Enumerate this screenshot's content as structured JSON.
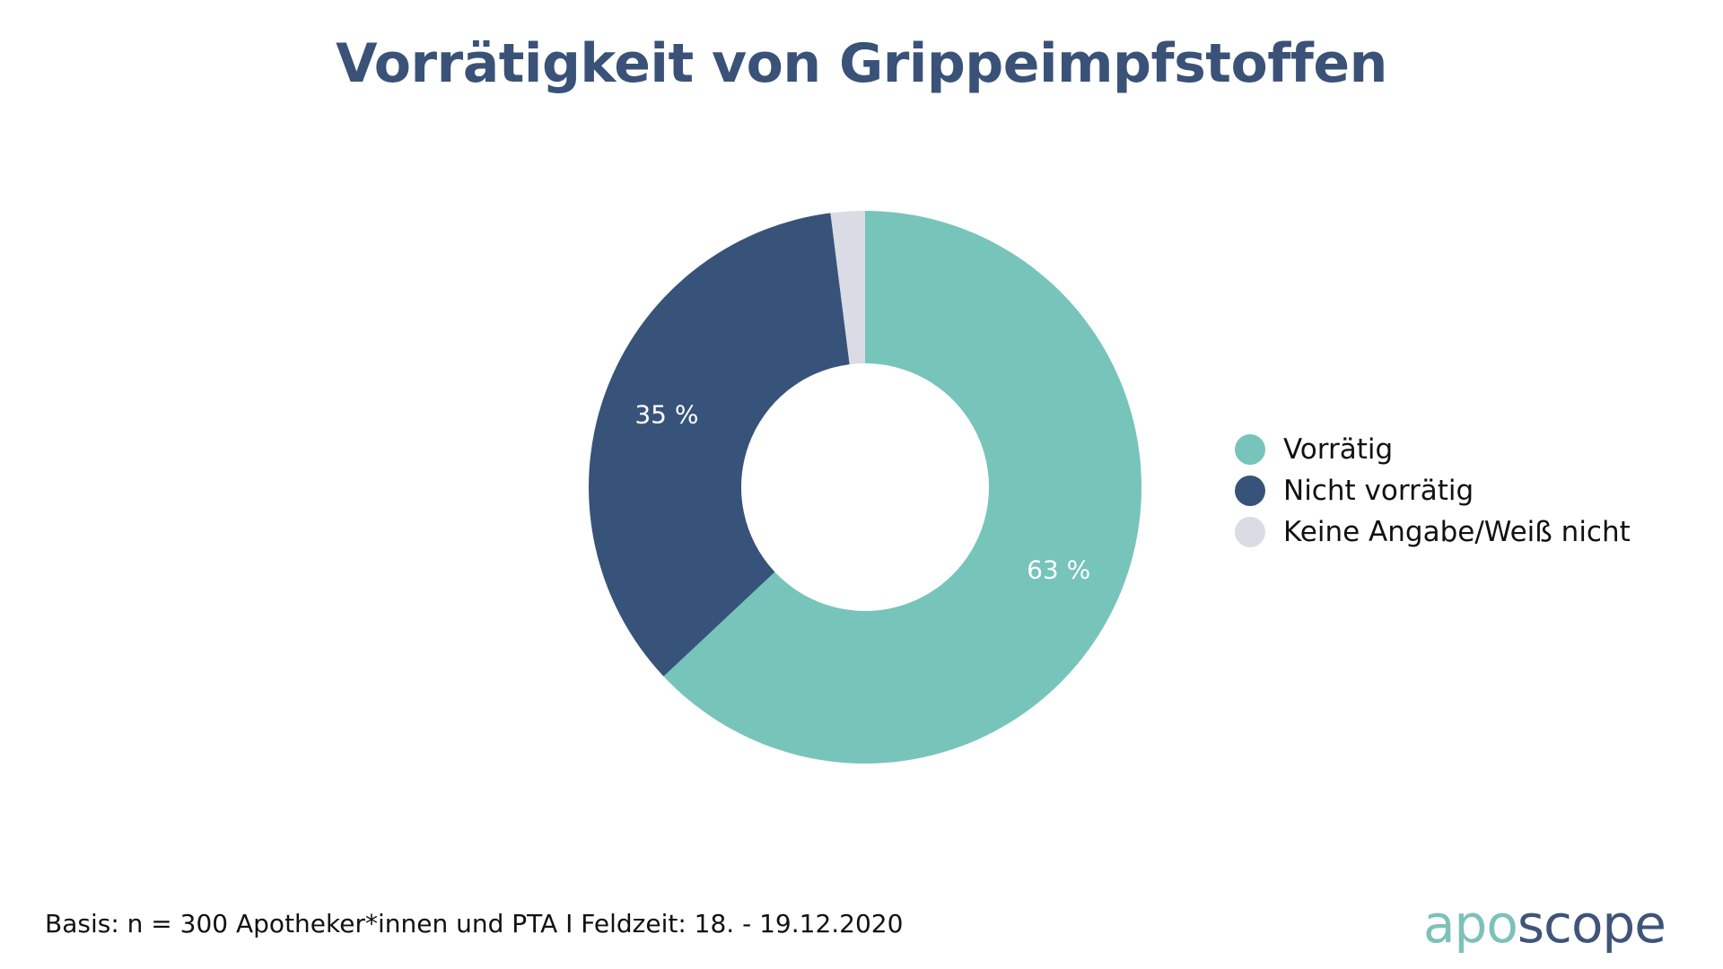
{
  "chart_data": {
    "type": "pie",
    "variant": "donut",
    "title": "Vorrätigkeit von Grippeimpfstoffen",
    "categories": [
      "Vorrätig",
      "Nicht vorrätig",
      "Keine Angabe/Weiß nicht"
    ],
    "values": [
      63,
      35,
      2
    ],
    "data_labels": [
      "63 %",
      "35 %",
      ""
    ],
    "colors": [
      "#77c4bb",
      "#38537a",
      "#d9dce4"
    ],
    "unit": "%",
    "legend_placement": "right"
  },
  "footer": {
    "note": "Basis: n = 300 Apotheker*innen und PTA I Feldzeit: 18. - 19.12.2020"
  },
  "logo": {
    "part1": "apo",
    "part2": "scope"
  }
}
